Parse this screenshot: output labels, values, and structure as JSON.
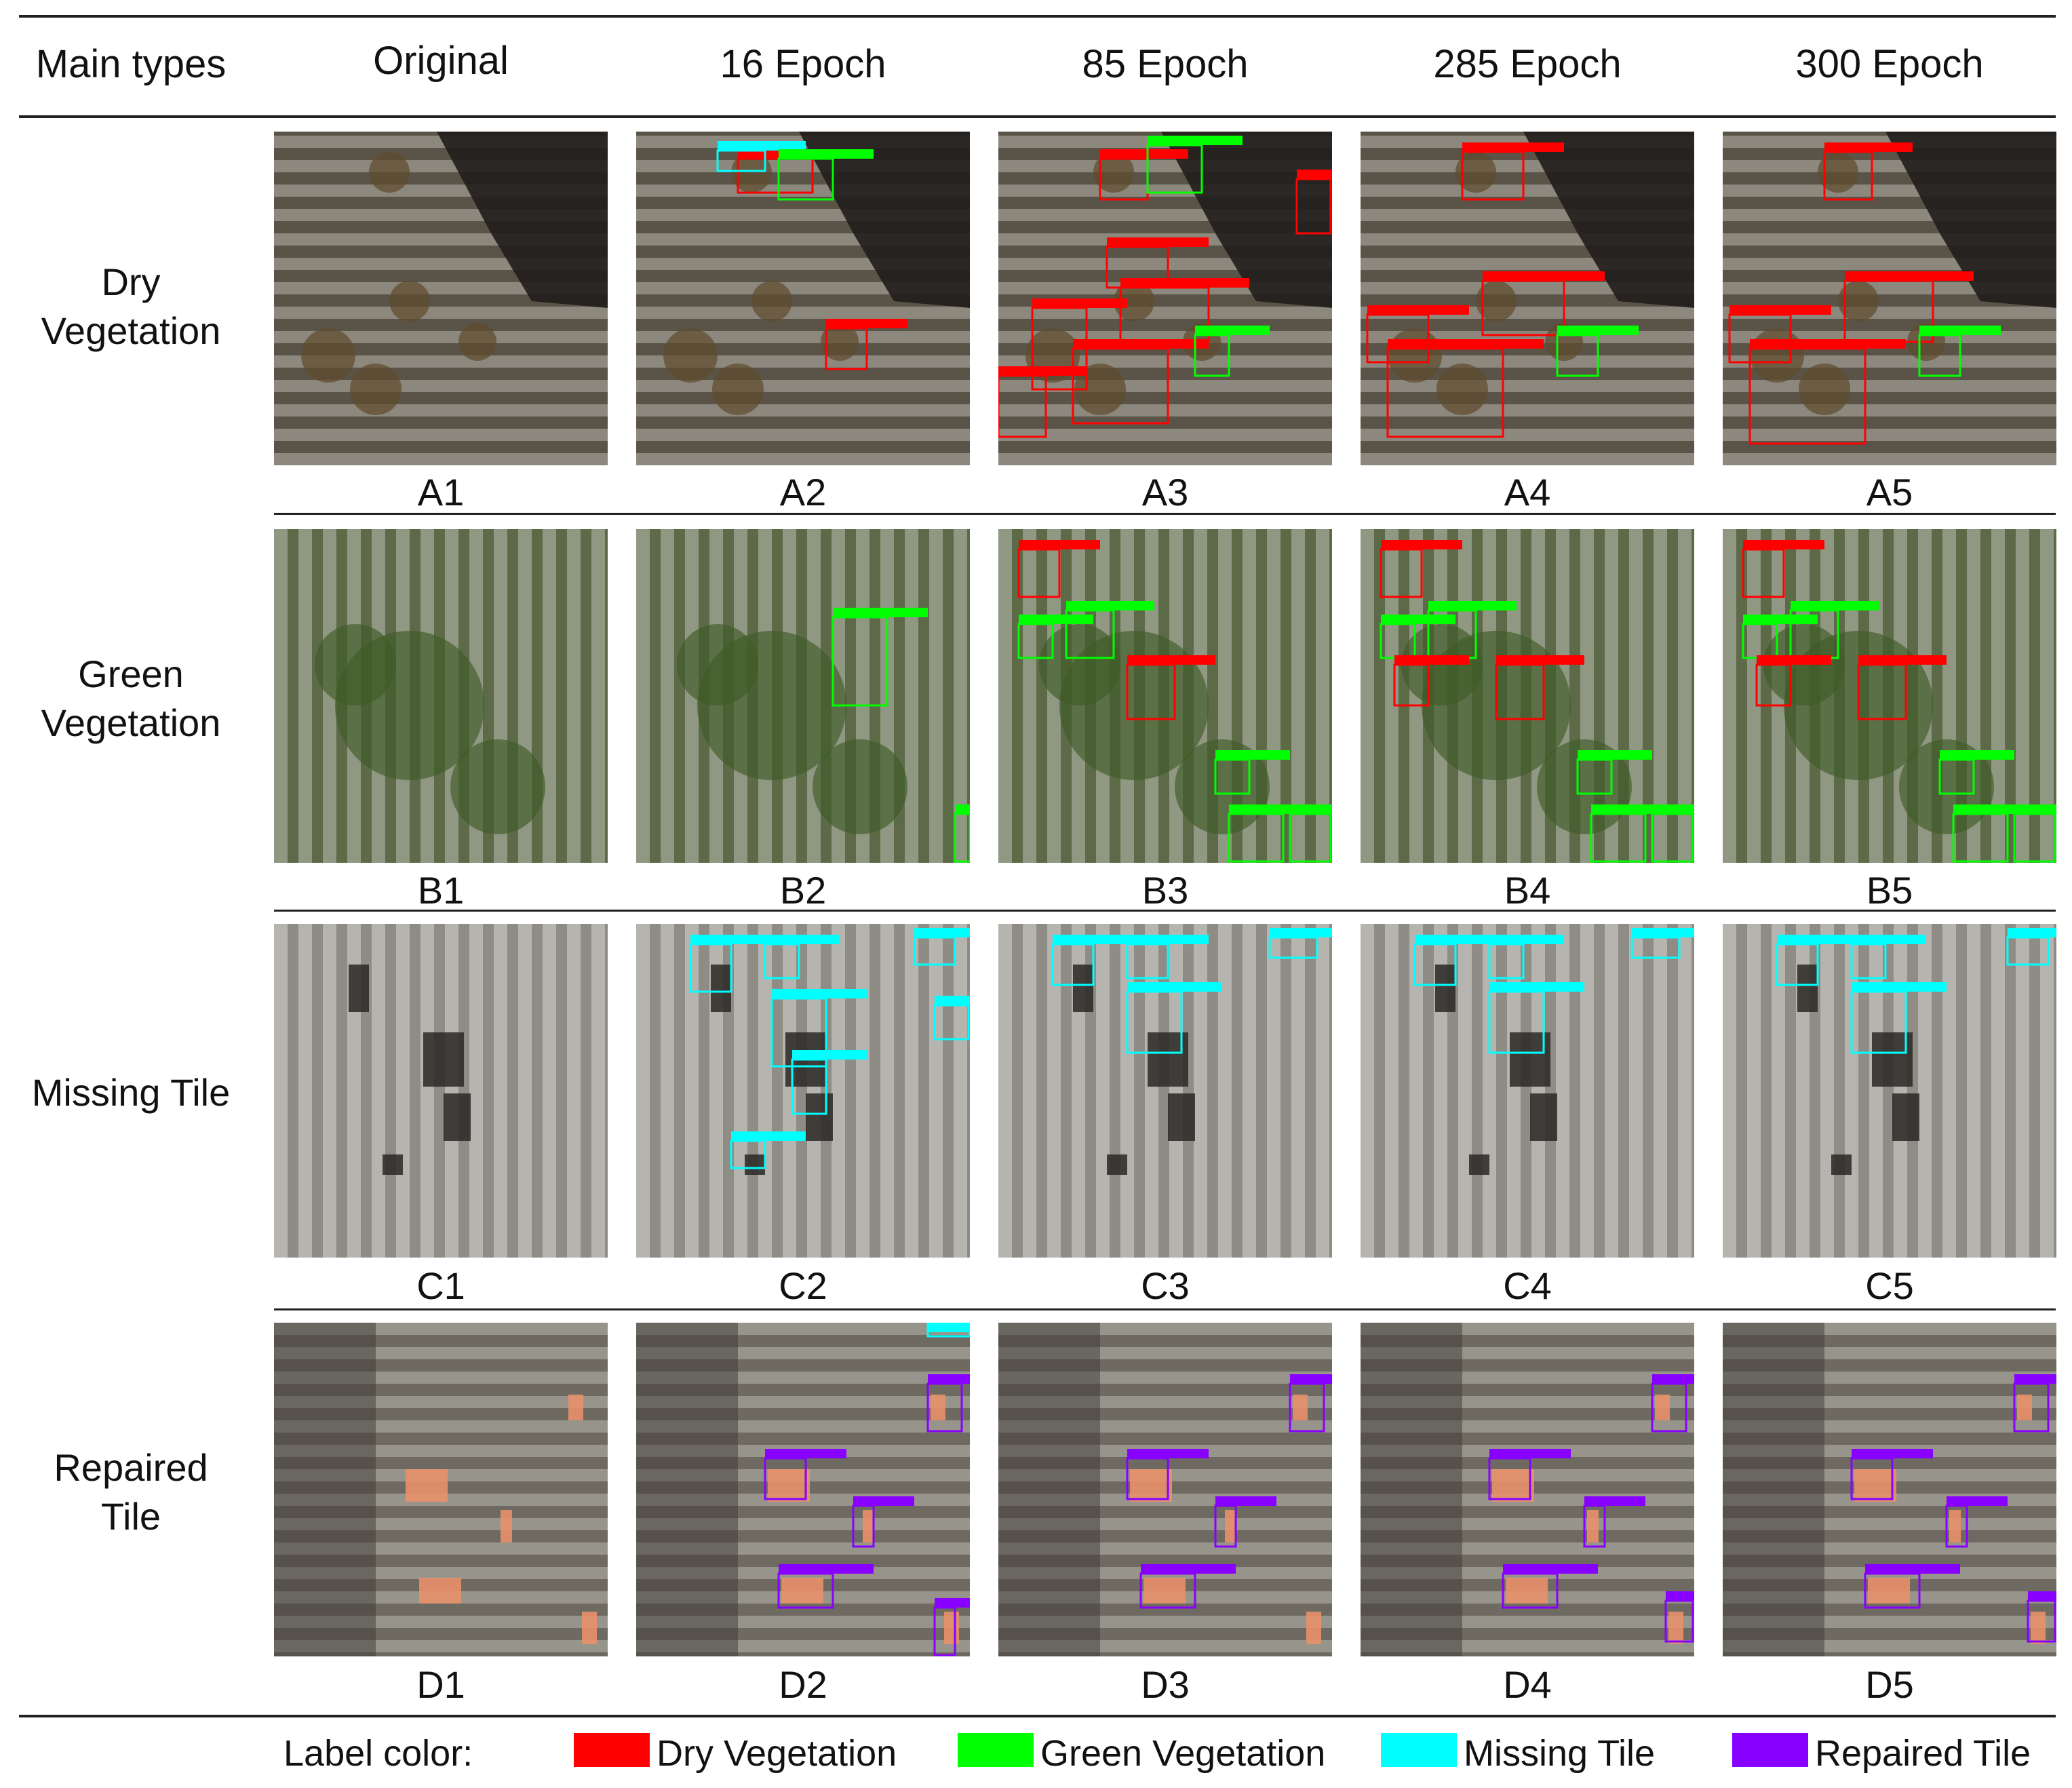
{
  "header": {
    "main_types": "Main types",
    "columns": [
      "Original",
      "16 Epoch",
      "85 Epoch",
      "285 Epoch",
      "300 Epoch"
    ]
  },
  "rows": [
    {
      "label_line1": "Dry",
      "label_line2": "Vegetation",
      "captions": [
        "A1",
        "A2",
        "A3",
        "A4",
        "A5"
      ],
      "tint": "#5a5448"
    },
    {
      "label_line1": "Green",
      "label_line2": "Vegetation",
      "captions": [
        "B1",
        "B2",
        "B3",
        "B4",
        "B5"
      ],
      "tint": "#5d6a48"
    },
    {
      "label_line1": "Missing Tile",
      "label_line2": "",
      "captions": [
        "C1",
        "C2",
        "C3",
        "C4",
        "C5"
      ],
      "tint": "#8f8c86"
    },
    {
      "label_line1": "Repaired",
      "label_line2": "Tile",
      "captions": [
        "D1",
        "D2",
        "D3",
        "D4",
        "D5"
      ],
      "tint": "#6e6a62"
    }
  ],
  "legend": {
    "title": "Label color:",
    "items": [
      {
        "label": "Dry Vegetation",
        "color": "#ff0000"
      },
      {
        "label": "Green Vegetation",
        "color": "#00ff00"
      },
      {
        "label": "Missing Tile",
        "color": "#00ffff"
      },
      {
        "label": "Repaired Tile",
        "color": "#8800ff"
      }
    ]
  },
  "box_labels": {
    "dry": "Dry Vegetation",
    "green": "Green Vegetation",
    "missing": "Missing Tile",
    "repaired": "Repaired Tile"
  }
}
